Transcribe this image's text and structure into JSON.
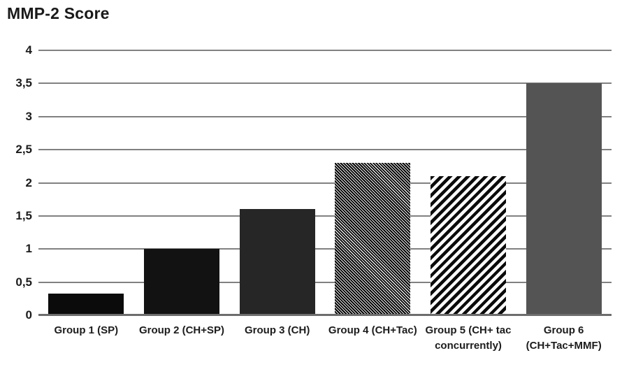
{
  "page": {
    "background_color": "#ffffff",
    "text_color": "#1c1c1c"
  },
  "chart_data": {
    "type": "bar",
    "title": "MMP-2 Score",
    "xlabel": "",
    "ylabel": "",
    "categories": [
      "Group 1 (SP)",
      "Group 2 (CH+SP)",
      "Group 3 (CH)",
      "Group 4 (CH+Tac)",
      "Group 5 (CH+ tac concurrently)",
      "Group 6 (CH+Tac+MMF)"
    ],
    "category_label_lines": [
      [
        "Group 1 (SP)"
      ],
      [
        "Group 2 (CH+SP)"
      ],
      [
        "Group 3 (CH)"
      ],
      [
        "Group 4 (CH+Tac)"
      ],
      [
        "Group 5 (CH+ tac",
        "concurrently)"
      ],
      [
        "Group 6",
        "(CH+Tac+MMF)"
      ]
    ],
    "values": [
      0.33,
      1,
      1.6,
      2.3,
      2.1,
      3.5
    ],
    "ylim": [
      0,
      4
    ],
    "yticks": [
      0,
      0.5,
      1,
      1.5,
      2,
      2.5,
      3,
      3.5,
      4
    ],
    "ytick_labels": [
      "0",
      "0,5",
      "1",
      "1,5",
      "2",
      "2,5",
      "3",
      "3,5",
      "4"
    ],
    "decimal_separator": ",",
    "grid": true,
    "legend": false,
    "gridline_color": "#818181",
    "axis_line_color": "#6d6d6d",
    "bar_styles": [
      {
        "fill": "solid",
        "color": "#0b0b0b"
      },
      {
        "fill": "solid",
        "color": "#121212"
      },
      {
        "fill": "solid",
        "color": "#262626"
      },
      {
        "fill": "pattern",
        "pattern": "diagonal-down-fine",
        "fg": "#000000",
        "bg": "#ededed"
      },
      {
        "fill": "pattern",
        "pattern": "diagonal-up-wide",
        "fg": "#0b0b0b",
        "bg": "#fafafa"
      },
      {
        "fill": "solid",
        "color": "#545454"
      }
    ]
  }
}
